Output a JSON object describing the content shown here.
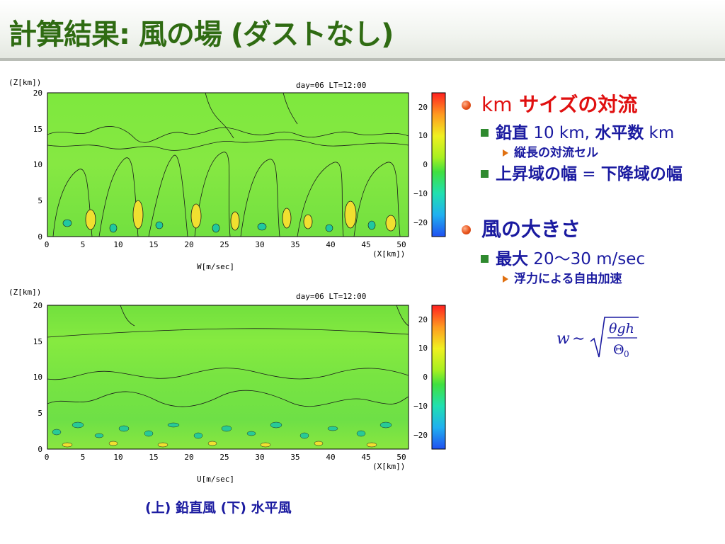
{
  "slide": {
    "title": "計算結果: 風の場 (ダストなし)",
    "caption": "(上) 鉛直風 (下) 水平風"
  },
  "plots": [
    {
      "id": "w",
      "z_axis_label": "(Z[km])",
      "x_axis_label": "(X[km])",
      "time_label": "day=06  LT=12:00",
      "quantity_label": "W[m/sec]",
      "x_ticks": [
        "0",
        "5",
        "10",
        "15",
        "20",
        "25",
        "30",
        "35",
        "40",
        "45",
        "50"
      ],
      "z_ticks": [
        "0",
        "5",
        "10",
        "15",
        "20"
      ],
      "colorbar_ticks": [
        "20",
        "10",
        "0",
        "−10",
        "−20"
      ]
    },
    {
      "id": "u",
      "z_axis_label": "(Z[km])",
      "x_axis_label": "(X[km])",
      "time_label": "day=06  LT=12:00",
      "quantity_label": "U[m/sec]",
      "x_ticks": [
        "0",
        "5",
        "10",
        "15",
        "20",
        "25",
        "30",
        "35",
        "40",
        "45",
        "50"
      ],
      "z_ticks": [
        "0",
        "5",
        "10",
        "15",
        "20"
      ],
      "colorbar_ticks": [
        "20",
        "10",
        "0",
        "−10",
        "−20"
      ]
    }
  ],
  "bullets": {
    "section1": {
      "heading_km": "km",
      "heading_rest": " サイズの対流",
      "item1": {
        "a": "鉛直",
        "b": " 10 km, ",
        "c": "水平数",
        "d": " km"
      },
      "item1_sub": "縦長の対流セル",
      "item2": {
        "a": "上昇域の幅",
        "b": " = ",
        "c": "下降域の幅"
      }
    },
    "section2": {
      "heading": "風の大きさ",
      "item1": {
        "a": "最大",
        "b": " 20〜30 m/sec"
      },
      "item1_sub": "浮力による自由加速"
    }
  },
  "formula": {
    "lhs": "w",
    "op": "∼",
    "numerator": "θgh",
    "denominator": "Θ",
    "denominator_sub": "0"
  }
}
